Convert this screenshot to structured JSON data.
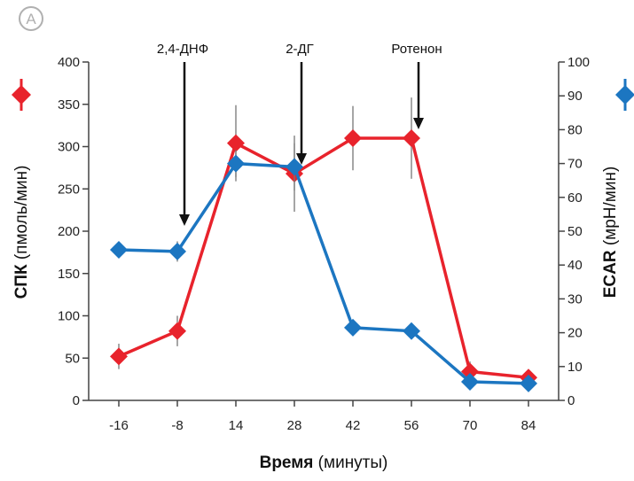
{
  "panel_label": "A",
  "chart_data": {
    "type": "line",
    "categories": [
      "-16",
      "-8",
      "14",
      "28",
      "42",
      "56",
      "70",
      "84"
    ],
    "series": [
      {
        "name": "СПК",
        "axis": "left",
        "color": "#e8232c",
        "values": [
          52,
          82,
          304,
          268,
          310,
          310,
          34,
          27
        ],
        "error": [
          15,
          18,
          45,
          45,
          38,
          48,
          12,
          8
        ]
      },
      {
        "name": "ECAR",
        "axis": "right",
        "color": "#1c76c1",
        "values": [
          44.5,
          44,
          70,
          69,
          21.5,
          20.5,
          5.5,
          5
        ],
        "error": [
          0,
          3,
          4,
          7,
          0,
          0,
          0,
          0
        ]
      }
    ],
    "y_left": {
      "label_bold": "СПК",
      "label_rest": " (пмоль/мин)",
      "ylim": [
        0,
        400
      ],
      "ticks": [
        "0",
        "50",
        "100",
        "150",
        "200",
        "250",
        "300",
        "350",
        "400"
      ]
    },
    "y_right": {
      "label_bold": "ECAR",
      "label_rest": " (мрН/мин)",
      "ylim": [
        0,
        100
      ],
      "ticks": [
        "0",
        "10",
        "20",
        "30",
        "40",
        "50",
        "60",
        "70",
        "80",
        "90",
        "100"
      ]
    },
    "x_axis": {
      "label_bold": "Время",
      "label_rest": " (минуты)"
    },
    "annotations": [
      {
        "text": "2,4-ДНФ",
        "x_index": 1
      },
      {
        "text": "2-ДГ",
        "x_index": 3
      },
      {
        "text": "Ротенон",
        "x_index": 5
      }
    ],
    "grid": false
  }
}
